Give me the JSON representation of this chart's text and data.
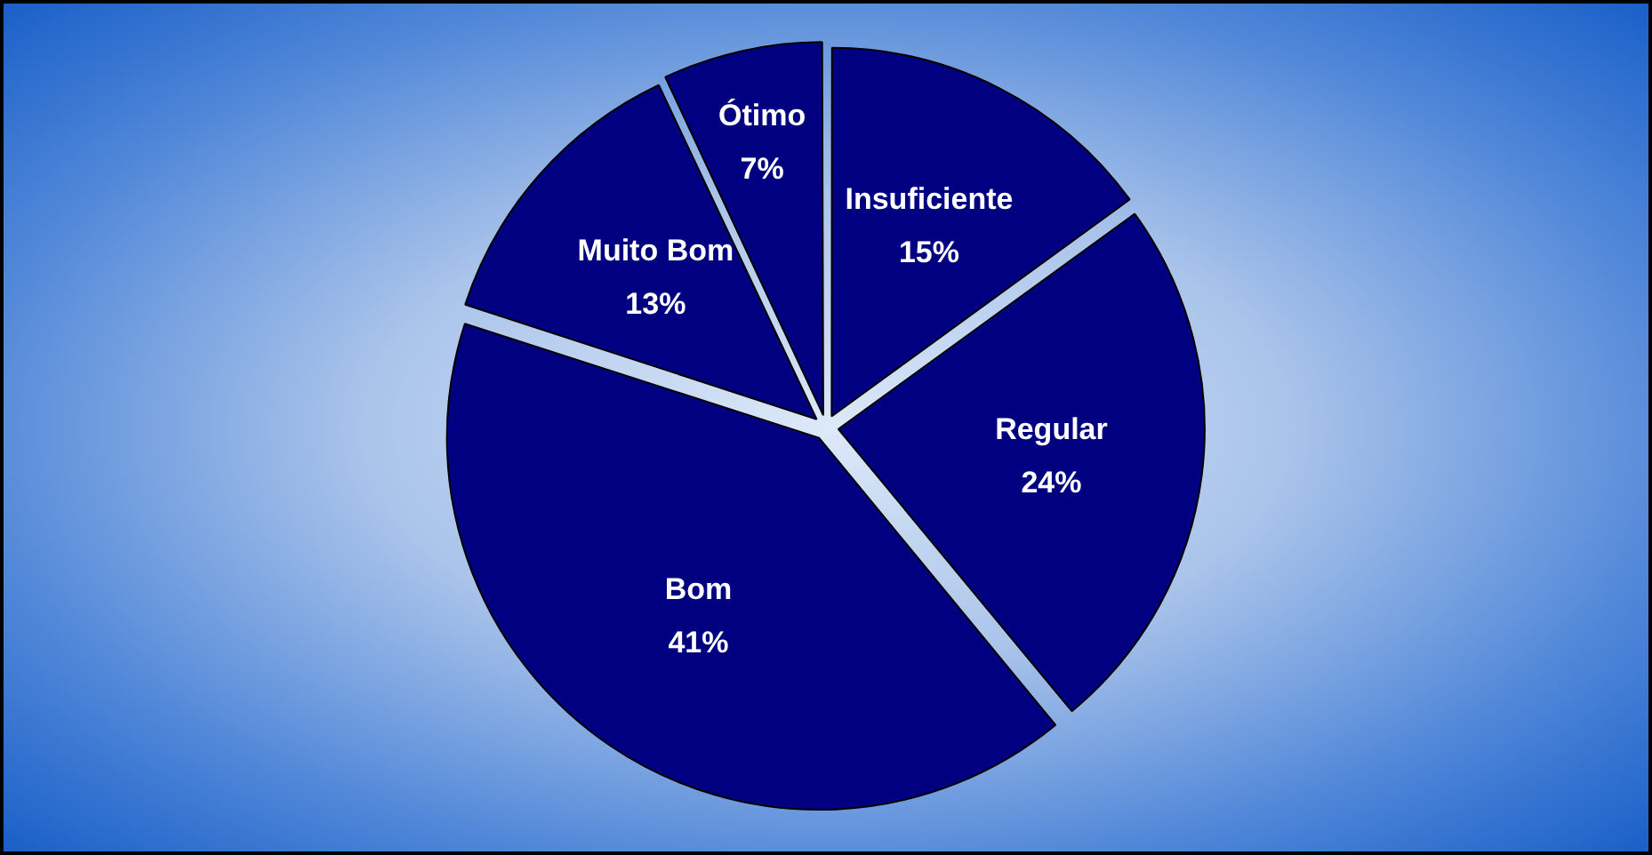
{
  "chart_data": {
    "type": "pie",
    "categories": [
      "Insuficiente",
      "Regular",
      "Bom",
      "Muito Bom",
      "Ótimo"
    ],
    "values": [
      15,
      24,
      41,
      13,
      7
    ],
    "value_labels": [
      "15%",
      "24%",
      "41%",
      "13%",
      "7%"
    ],
    "colors": [
      "#000080",
      "#000080",
      "#000080",
      "#000080",
      "#000080"
    ],
    "legend": false
  }
}
